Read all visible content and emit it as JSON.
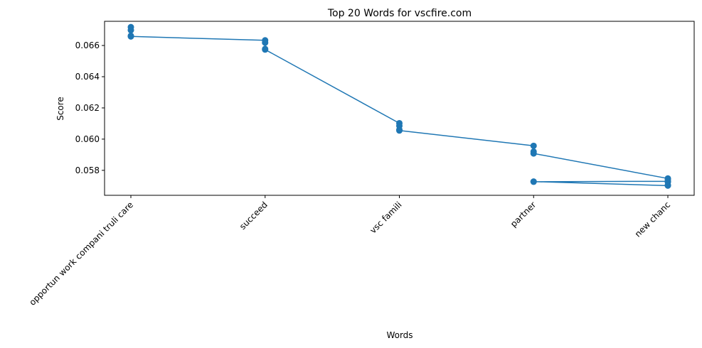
{
  "chart_data": {
    "type": "line",
    "title": "Top 20 Words for vscfire.com",
    "xlabel": "Words",
    "ylabel": "Score",
    "categories": [
      "opportun work compani truli care",
      "succeed",
      "vsc famili",
      "partner",
      "new chanc"
    ],
    "ylim": [
      0.0564,
      0.06755
    ],
    "yticks": [
      0.058,
      0.06,
      0.062,
      0.064,
      0.066
    ],
    "ytick_labels": [
      "0.058",
      "0.060",
      "0.062",
      "0.064",
      "0.066"
    ],
    "grid": false,
    "legend": "none",
    "series": [
      {
        "color": "#1f77b4",
        "points": [
          {
            "x": 0,
            "y": 0.06718
          },
          {
            "x": 0,
            "y": 0.06698
          },
          {
            "x": 0,
            "y": 0.06662
          },
          {
            "x": 0,
            "y": 0.06658
          },
          {
            "x": 1,
            "y": 0.06633
          },
          {
            "x": 1,
            "y": 0.06618
          },
          {
            "x": 1,
            "y": 0.06578
          },
          {
            "x": 1,
            "y": 0.06574
          },
          {
            "x": 2,
            "y": 0.06102
          },
          {
            "x": 2,
            "y": 0.06085
          },
          {
            "x": 2,
            "y": 0.0606
          },
          {
            "x": 2,
            "y": 0.06055
          },
          {
            "x": 3,
            "y": 0.05957
          },
          {
            "x": 3,
            "y": 0.0592
          },
          {
            "x": 3,
            "y": 0.05908
          },
          {
            "x": 4,
            "y": 0.05748
          },
          {
            "x": 4,
            "y": 0.05744
          },
          {
            "x": 4,
            "y": 0.05726
          },
          {
            "x": 4,
            "y": 0.05705
          },
          {
            "x": 4,
            "y": 0.05702
          },
          {
            "x": 3,
            "y": 0.05728
          },
          {
            "x": 3,
            "y": 0.05727
          },
          {
            "x": 4,
            "y": 0.0573
          }
        ]
      }
    ]
  }
}
